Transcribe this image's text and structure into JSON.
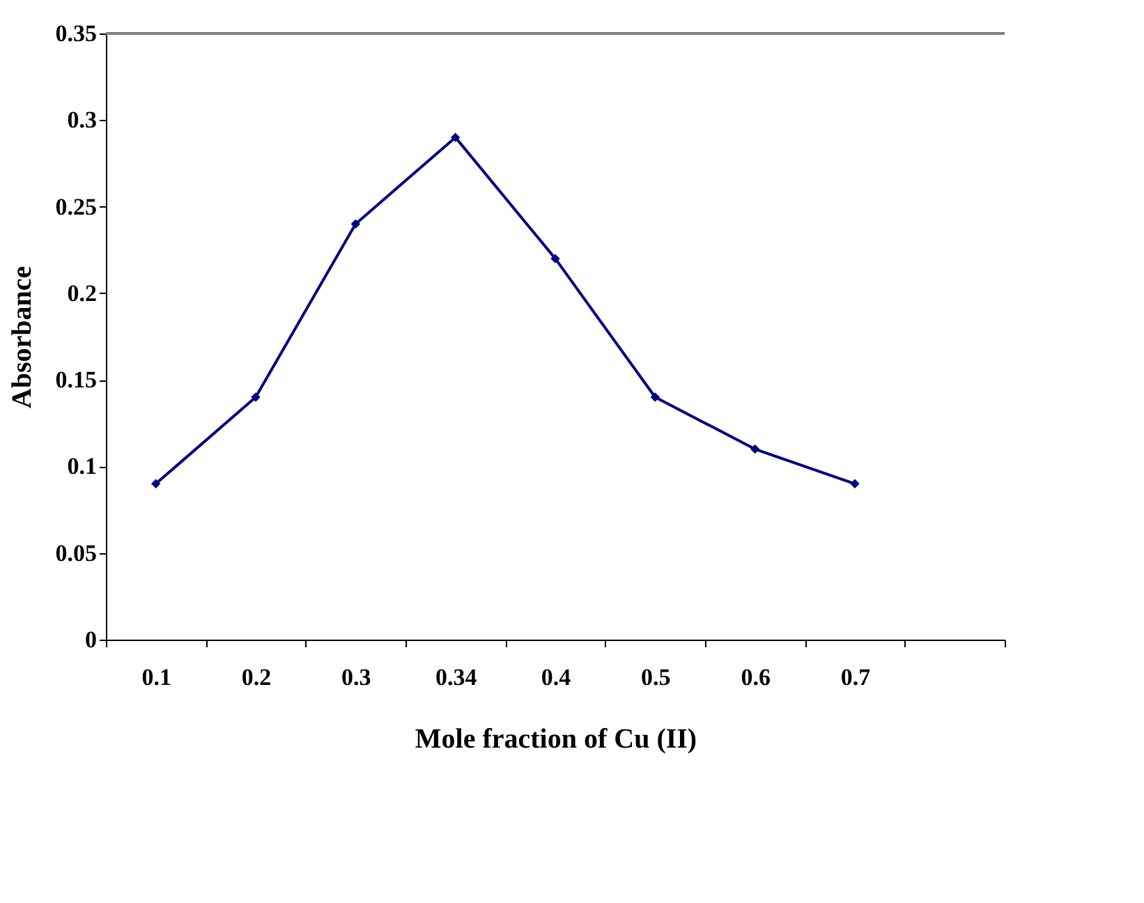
{
  "chart_data": {
    "type": "line",
    "xlabel": "Mole fraction of Cu (II)",
    "ylabel": "Absorbance",
    "categories": [
      "0.1",
      "0.2",
      "0.3",
      "0.34",
      "0.4",
      "0.5",
      "0.6",
      "0.7",
      null
    ],
    "series": [
      {
        "color": "#000080",
        "values": [
          0.09,
          0.14,
          0.24,
          0.29,
          0.22,
          0.14,
          0.11,
          0.09,
          null
        ]
      }
    ],
    "ylim": [
      0,
      0.35
    ],
    "yticks": [
      0,
      0.05,
      0.1,
      0.15,
      0.2,
      0.25,
      0.3,
      0.35
    ],
    "grid": false,
    "marker": "diamond",
    "line_style": "solid"
  }
}
